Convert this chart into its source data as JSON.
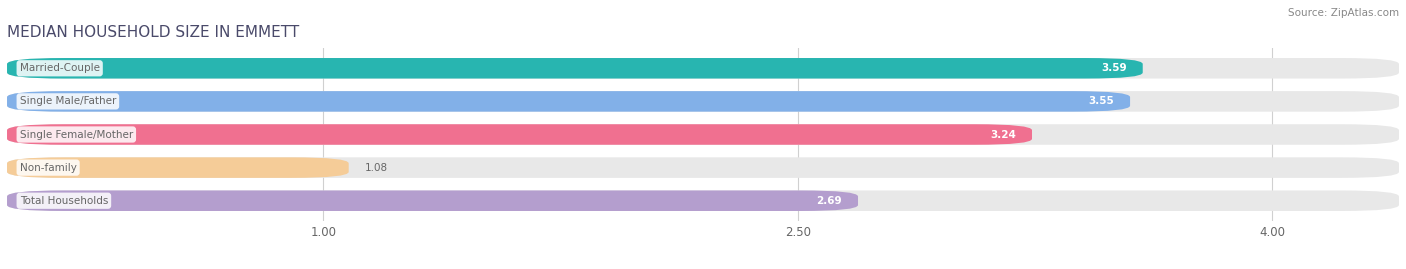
{
  "title": "MEDIAN HOUSEHOLD SIZE IN EMMETT",
  "source": "Source: ZipAtlas.com",
  "categories": [
    "Married-Couple",
    "Single Male/Father",
    "Single Female/Mother",
    "Non-family",
    "Total Households"
  ],
  "values": [
    3.59,
    3.55,
    3.24,
    1.08,
    2.69
  ],
  "bar_colors": [
    "#28b5b0",
    "#82b0e8",
    "#f07090",
    "#f5cc98",
    "#b49ece"
  ],
  "xmin": 0.0,
  "xmax": 4.4,
  "xticks": [
    1.0,
    2.5,
    4.0
  ],
  "xtick_labels": [
    "1.00",
    "2.50",
    "4.00"
  ],
  "bar_height": 0.62,
  "value_label_color": "white",
  "label_color": "#666666",
  "title_color": "#4a4a6a",
  "background_color": "#ffffff",
  "bar_bg_color": "#e8e8e8"
}
